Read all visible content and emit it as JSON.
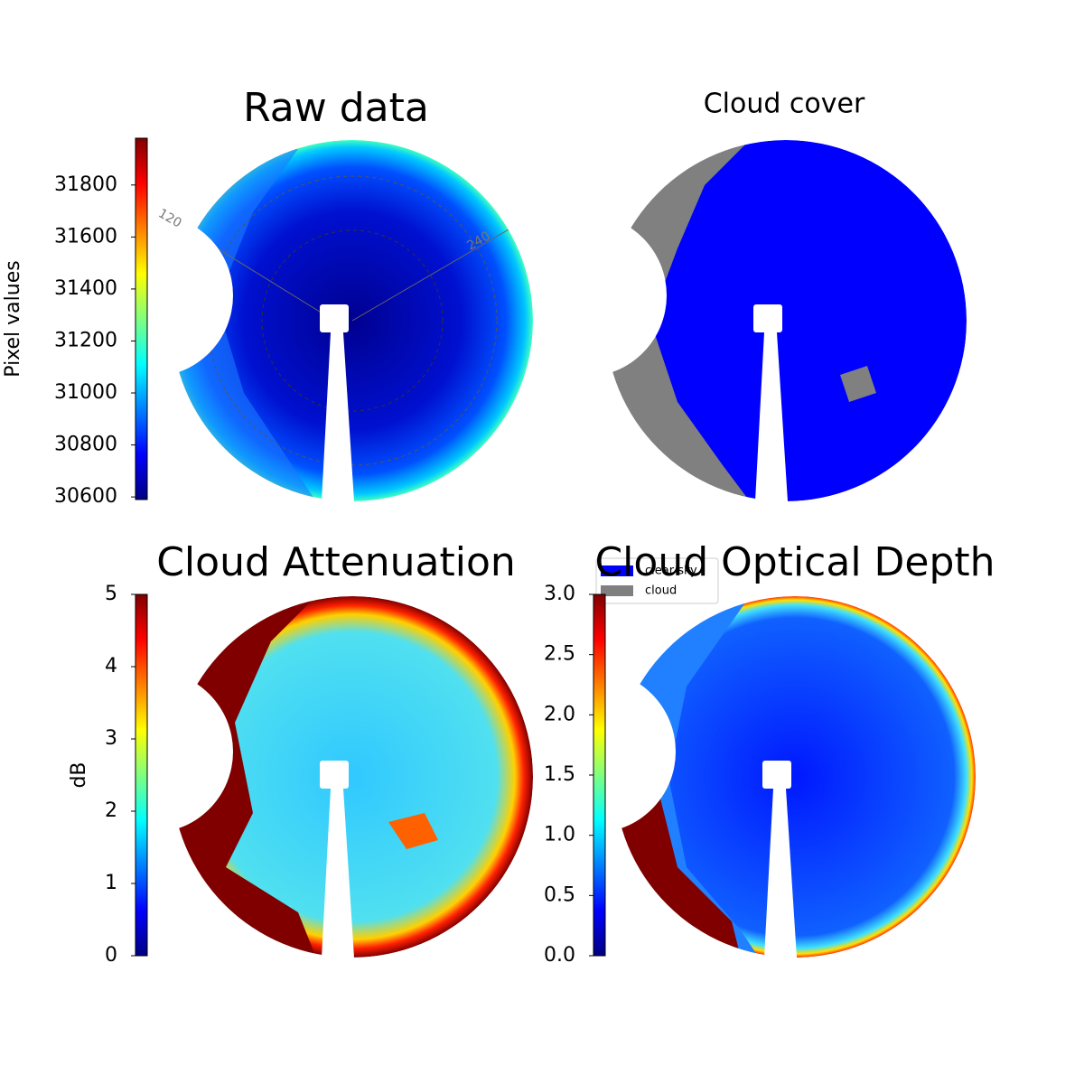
{
  "chart_data": [
    {
      "type": "image",
      "title": "Raw data",
      "ylabel": "Pixel values",
      "colormap": "jet",
      "ylim": [
        30590,
        31980
      ],
      "yticks": [
        30600,
        30800,
        31000,
        31200,
        31400,
        31600,
        31800
      ],
      "annotations": [
        "120",
        "240"
      ]
    },
    {
      "type": "image",
      "title": "Cloud cover",
      "series": [
        {
          "name": "clear sky",
          "color": "#0000ff"
        },
        {
          "name": "cloud",
          "color": "#808080"
        }
      ]
    },
    {
      "type": "image",
      "title": "Cloud Attenuation",
      "ylabel": "dB",
      "colormap": "jet",
      "ylim": [
        0,
        5
      ],
      "yticks": [
        0,
        1,
        2,
        3,
        4,
        5
      ]
    },
    {
      "type": "image",
      "title": "Cloud Optical Depth",
      "colormap": "jet",
      "ylim": [
        0,
        3
      ],
      "yticks": [
        {
          "value": 0,
          "label": "0.0"
        },
        0.5,
        {
          "value": 1,
          "label": "1.0"
        },
        1.5,
        {
          "value": 2,
          "label": "2.0"
        },
        2.5,
        {
          "value": 3,
          "label": "3.0"
        }
      ]
    }
  ]
}
